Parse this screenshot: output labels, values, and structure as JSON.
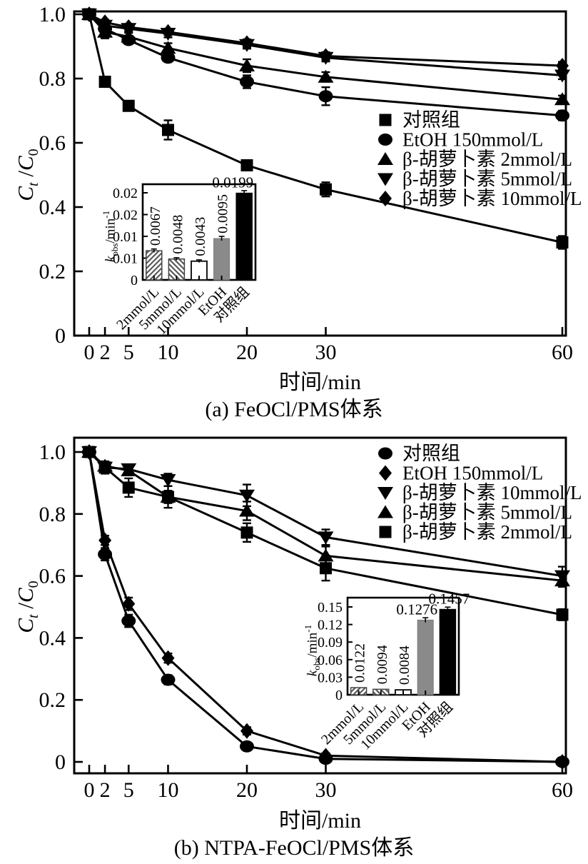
{
  "colors": {
    "line": "#000000",
    "bar_gray": "#8a8a8a",
    "bar_black": "#000000",
    "bar_white": "#ffffff",
    "hatch": "#5a5a5a",
    "background": "#ffffff"
  },
  "chart_data": [
    {
      "type": "line",
      "caption": "(a) FeOCl/PMS体系",
      "xlabel": "时间/min",
      "ylabel": "Ct/C0",
      "ylabel_parts": [
        "C",
        "t",
        " /",
        "C",
        "0"
      ],
      "x": [
        0,
        2,
        5,
        10,
        20,
        30,
        60
      ],
      "xtick_labels": [
        "0",
        "2",
        "5",
        "10",
        "20",
        "30",
        "60"
      ],
      "ytick_vals": [
        1.0,
        0.8,
        0.6,
        0.4,
        0.2,
        0
      ],
      "ytick_labels": [
        "1.0",
        "0.8",
        "0.6",
        "0.4",
        "0.2",
        "0"
      ],
      "xlim": [
        -2,
        61
      ],
      "ylim": [
        0,
        1.01
      ],
      "series": [
        {
          "name": "对照组",
          "marker": "square",
          "values": [
            1.0,
            0.79,
            0.715,
            0.64,
            0.53,
            0.455,
            0.29
          ],
          "err": [
            0.008,
            0.012,
            0.012,
            0.03,
            0.015,
            0.022,
            0.02
          ]
        },
        {
          "name": "EtOH 150mmol/L",
          "marker": "circle",
          "values": [
            1.0,
            0.955,
            0.92,
            0.865,
            0.79,
            0.745,
            0.685
          ],
          "err": [
            0.006,
            0.01,
            0.012,
            0.012,
            0.02,
            0.028,
            0.015
          ]
        },
        {
          "name": "β-胡萝卜素 2mmol/L",
          "marker": "triangle-up",
          "values": [
            1.0,
            0.945,
            0.93,
            0.895,
            0.84,
            0.805,
            0.735
          ],
          "err": [
            0.006,
            0.02,
            0.012,
            0.015,
            0.02,
            0.015,
            0.012
          ]
        },
        {
          "name": "β-胡萝卜素 5mmol/L",
          "marker": "triangle-down",
          "values": [
            1.0,
            0.965,
            0.955,
            0.94,
            0.905,
            0.865,
            0.81
          ],
          "err": [
            0.005,
            0.01,
            0.01,
            0.012,
            0.012,
            0.012,
            0.012
          ]
        },
        {
          "name": "β-胡萝卜素 10mmol/L",
          "marker": "diamond",
          "values": [
            1.0,
            0.975,
            0.96,
            0.945,
            0.91,
            0.87,
            0.84
          ],
          "err": [
            0.005,
            0.008,
            0.01,
            0.01,
            0.012,
            0.012,
            0.012
          ]
        }
      ],
      "inset": {
        "type": "bar",
        "ylabel": "kobs/min-1",
        "ylabel_parts": [
          "k",
          "obs",
          "/min",
          "-1"
        ],
        "categories": [
          "2mmol/L",
          "5mmol/L",
          "10mmol/L",
          "EtOH",
          "对照组"
        ],
        "values": [
          0.0067,
          0.0048,
          0.0043,
          0.0095,
          0.0199
        ],
        "value_labels": [
          "0.0067",
          "0.0048",
          "0.0043",
          "0.0095",
          "0.0199"
        ],
        "errors": [
          0.0004,
          0.0003,
          0.0003,
          0.0005,
          0.0006
        ],
        "bar_styles": [
          "hatch-forward",
          "hatch-back",
          "white",
          "gray",
          "black"
        ],
        "ytick_vals": [
          0.02,
          0.015,
          0.01,
          0.005,
          0
        ],
        "ytick_labels": [
          "0.02",
          "0.02",
          "0.01",
          "0.01",
          "0"
        ],
        "ymax": 0.02
      }
    },
    {
      "type": "line",
      "caption": "(b) NTPA-FeOCl/PMS体系",
      "xlabel": "时间/min",
      "ylabel": "Ct/C0",
      "ylabel_parts": [
        "C",
        "t",
        " /",
        "C",
        "0"
      ],
      "x": [
        0,
        2,
        5,
        10,
        20,
        30,
        60
      ],
      "xtick_labels": [
        "0",
        "2",
        "5",
        "10",
        "20",
        "30",
        "60"
      ],
      "ytick_vals": [
        1.0,
        0.8,
        0.6,
        0.4,
        0.2,
        0
      ],
      "ytick_labels": [
        "1.0",
        "0.8",
        "0.6",
        "0.4",
        "0.2",
        "0"
      ],
      "xlim": [
        -2,
        61
      ],
      "ylim": [
        -0.04,
        1.04
      ],
      "series": [
        {
          "name": "对照组",
          "marker": "circle",
          "values": [
            1.0,
            0.67,
            0.455,
            0.265,
            0.05,
            0.01,
            0.0
          ],
          "err": [
            0.008,
            0.02,
            0.02,
            0.015,
            0.012,
            0.006,
            0.004
          ]
        },
        {
          "name": "EtOH 150mmol/L",
          "marker": "diamond",
          "values": [
            1.0,
            0.715,
            0.51,
            0.335,
            0.1,
            0.02,
            0.0
          ],
          "err": [
            0.008,
            0.015,
            0.02,
            0.015,
            0.012,
            0.008,
            0.004
          ]
        },
        {
          "name": "β-胡萝卜素 10mmol/L",
          "marker": "triangle-down",
          "values": [
            1.0,
            0.95,
            0.945,
            0.91,
            0.86,
            0.725,
            0.6
          ],
          "err": [
            0.01,
            0.015,
            0.012,
            0.02,
            0.035,
            0.025,
            0.03
          ]
        },
        {
          "name": "β-胡萝卜素 5mmol/L",
          "marker": "triangle-up",
          "values": [
            1.0,
            0.955,
            0.94,
            0.855,
            0.81,
            0.665,
            0.585
          ],
          "err": [
            0.01,
            0.012,
            0.015,
            0.02,
            0.03,
            0.03,
            0.02
          ]
        },
        {
          "name": "β-胡萝卜素 2mmol/L",
          "marker": "square",
          "values": [
            1.0,
            0.95,
            0.885,
            0.855,
            0.74,
            0.625,
            0.475
          ],
          "err": [
            0.01,
            0.02,
            0.03,
            0.035,
            0.03,
            0.04,
            0.018
          ]
        }
      ],
      "inset": {
        "type": "bar",
        "ylabel": "kobs/min-1",
        "ylabel_parts": [
          "k",
          "obs",
          "/min",
          "-1"
        ],
        "categories": [
          "2mmol/L",
          "5mmol/L",
          "10mmol/L",
          "EtOH",
          "对照组"
        ],
        "values": [
          0.0122,
          0.0094,
          0.0084,
          0.1276,
          0.1457
        ],
        "value_labels": [
          "0.0122",
          "0.0094",
          "0.0084",
          "0.1276",
          "0.1457"
        ],
        "errors": [
          0.0008,
          0.0006,
          0.0006,
          0.004,
          0.004
        ],
        "bar_styles": [
          "hatch-forward",
          "hatch-back",
          "white",
          "gray",
          "black"
        ],
        "ytick_vals": [
          0.15,
          0.12,
          0.09,
          0.06,
          0.03,
          0
        ],
        "ytick_labels": [
          "0.15",
          "0.12",
          "0.09",
          "0.06",
          "0.03",
          "0"
        ],
        "ymax": 0.15
      }
    }
  ]
}
